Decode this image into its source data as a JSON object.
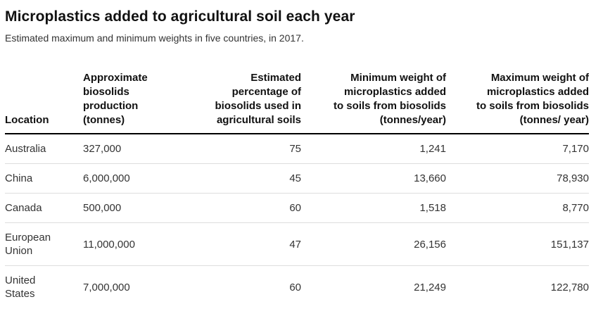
{
  "header": {
    "title": "Microplastics added to agricultural soil each year",
    "subtitle": "Estimated maximum and minimum weights in five countries, in 2017."
  },
  "table": {
    "columns": [
      {
        "label": "Location",
        "align": "left"
      },
      {
        "label": "Approximate\nbiosolids\nproduction\n(tonnes)",
        "align": "left"
      },
      {
        "label": "Estimated\npercentage of\nbiosolids used in\nagricultural soils",
        "align": "right"
      },
      {
        "label": "Minimum weight of\nmicroplastics added\nto soils from biosolids\n(tonnes/year)",
        "align": "right"
      },
      {
        "label": "Maximum weight of\nmicroplastics added\nto soils from biosolids\n(tonnes/ year)",
        "align": "right"
      }
    ],
    "rows": [
      {
        "location": "Australia",
        "production": "327,000",
        "percentage": "75",
        "min_weight": "1,241",
        "max_weight": "7,170"
      },
      {
        "location": "China",
        "production": "6,000,000",
        "percentage": "45",
        "min_weight": "13,660",
        "max_weight": "78,930"
      },
      {
        "location": "Canada",
        "production": "500,000",
        "percentage": "60",
        "min_weight": "1,518",
        "max_weight": "8,770"
      },
      {
        "location": "European\nUnion",
        "production": "11,000,000",
        "percentage": "47",
        "min_weight": "26,156",
        "max_weight": "151,137"
      },
      {
        "location": "United\nStates",
        "production": "7,000,000",
        "percentage": "60",
        "min_weight": "21,249",
        "max_weight": "122,780"
      }
    ]
  },
  "colors": {
    "title_text": "#111111",
    "body_text": "#333333",
    "header_rule": "#000000",
    "row_separator": "#dddddd",
    "background": "#ffffff"
  },
  "chart_data": {
    "type": "table",
    "title": "Microplastics added to agricultural soil each year",
    "subtitle": "Estimated maximum and minimum weights in five countries, in 2017.",
    "columns": [
      "Location",
      "Approximate biosolids production (tonnes)",
      "Estimated percentage of biosolids used in agricultural soils",
      "Minimum weight of microplastics added to soils from biosolids (tonnes/year)",
      "Maximum weight of microplastics added to soils from biosolids (tonnes/ year)"
    ],
    "rows": [
      [
        "Australia",
        327000,
        75,
        1241,
        7170
      ],
      [
        "China",
        6000000,
        45,
        13660,
        78930
      ],
      [
        "Canada",
        500000,
        60,
        1518,
        8770
      ],
      [
        "European Union",
        11000000,
        47,
        26156,
        151137
      ],
      [
        "United States",
        7000000,
        60,
        21249,
        122780
      ]
    ]
  }
}
